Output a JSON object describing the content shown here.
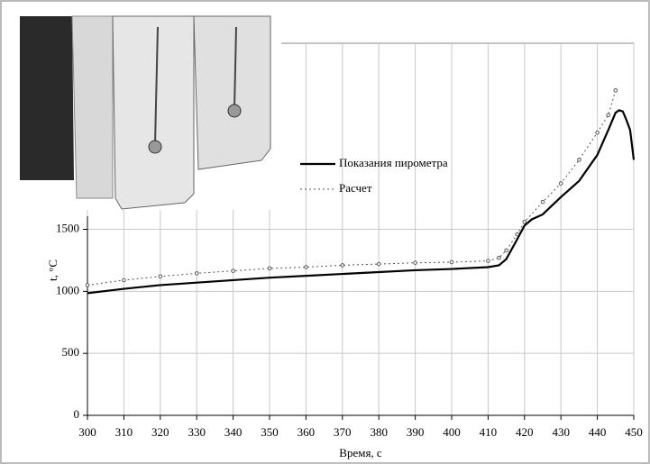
{
  "chart_data": {
    "type": "line",
    "x_label": "Время, с",
    "y_label": "t, °C",
    "xlim": [
      300,
      450
    ],
    "xticks": [
      300,
      310,
      320,
      330,
      340,
      350,
      360,
      370,
      380,
      390,
      400,
      410,
      420,
      430,
      440,
      450
    ],
    "ylim": [
      0,
      3000
    ],
    "yticks": [
      0,
      500,
      1000,
      1500
    ],
    "grid": true,
    "series": [
      {
        "name": "Показания пирометра",
        "color": "#000000",
        "style": "solid",
        "x": [
          300,
          310,
          320,
          330,
          340,
          350,
          360,
          370,
          380,
          390,
          400,
          410,
          413,
          415,
          418,
          420,
          422,
          425,
          430,
          435,
          440,
          443,
          445,
          446,
          447,
          448,
          449,
          450
        ],
        "values": [
          985,
          1020,
          1050,
          1070,
          1090,
          1110,
          1125,
          1140,
          1155,
          1170,
          1180,
          1195,
          1210,
          1260,
          1420,
          1530,
          1580,
          1620,
          1760,
          1890,
          2100,
          2300,
          2440,
          2460,
          2450,
          2380,
          2300,
          2060
        ]
      },
      {
        "name": "Расчет",
        "color": "#555555",
        "style": "dotted",
        "x": [
          300,
          310,
          320,
          330,
          340,
          350,
          360,
          370,
          380,
          390,
          400,
          410,
          413,
          415,
          418,
          420,
          425,
          430,
          435,
          440,
          443,
          445
        ],
        "values": [
          1050,
          1090,
          1120,
          1145,
          1165,
          1185,
          1195,
          1210,
          1220,
          1230,
          1235,
          1245,
          1270,
          1330,
          1460,
          1560,
          1720,
          1870,
          2060,
          2280,
          2420,
          2620
        ]
      }
    ]
  }
}
